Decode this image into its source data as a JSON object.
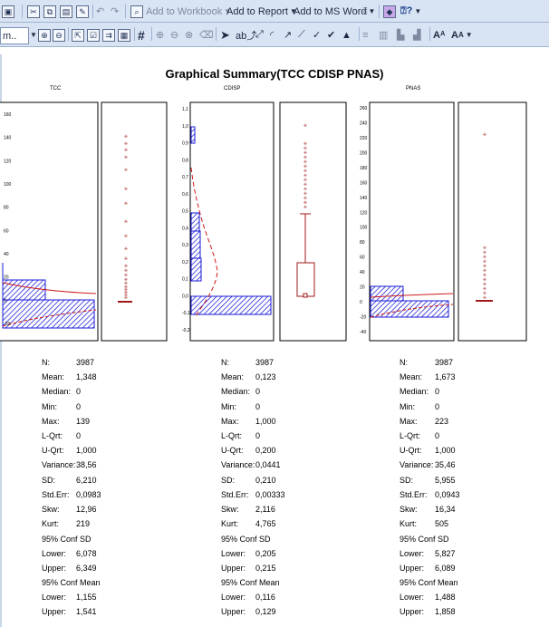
{
  "toolbar1": {
    "add_to_workbook": "Add to Workbook",
    "add_to_report": "Add to Report",
    "add_to_ms_word": "Add to MS Word"
  },
  "toolbar2": {
    "truncated_dropdown": "m..",
    "text_tool": "A"
  },
  "window_title": "Graphical Summary(TCC CDISP PNAS)",
  "panels": [
    {
      "name": "TCC",
      "y_ticks": [
        "160",
        "140",
        "120",
        "100",
        "80",
        "60",
        "40",
        "20",
        "0",
        "-20"
      ],
      "stats": [
        [
          "N:",
          "3987"
        ],
        [
          "Mean:",
          "1,348"
        ],
        [
          "Median:",
          "0"
        ],
        [
          "Min:",
          "0"
        ],
        [
          "Max:",
          "139"
        ],
        [
          "L-Qrt:",
          "0"
        ],
        [
          "U-Qrt:",
          "1,000"
        ],
        [
          "Variance:",
          "38,56"
        ],
        [
          "SD:",
          "6,210"
        ],
        [
          "Std.Err:",
          "0,0983"
        ],
        [
          "Skw:",
          "12,96"
        ],
        [
          "Kurt:",
          "219"
        ]
      ],
      "ci_sd": {
        "title": "95% Conf SD",
        "lower": [
          "Lower:",
          "6,078"
        ],
        "upper": [
          "Upper:",
          "6,349"
        ]
      },
      "ci_mean": {
        "title": "95% Conf Mean",
        "lower": [
          "Lower:",
          "1,155"
        ],
        "upper": [
          "Upper:",
          "1,541"
        ]
      }
    },
    {
      "name": "CDISP",
      "y_ticks": [
        "1,1",
        "1,0",
        "0,9",
        "0,8",
        "0,7",
        "0,6",
        "0,5",
        "0,4",
        "0,3",
        "0,2",
        "0,1",
        "0,0",
        "-0,1",
        "-0,2"
      ],
      "stats": [
        [
          "N:",
          "3987"
        ],
        [
          "Mean:",
          "0,123"
        ],
        [
          "Median:",
          "0"
        ],
        [
          "Min:",
          "0"
        ],
        [
          "Max:",
          "1,000"
        ],
        [
          "L-Qrt:",
          "0"
        ],
        [
          "U-Qrt:",
          "0,200"
        ],
        [
          "Variance:",
          "0,0441"
        ],
        [
          "SD:",
          "0,210"
        ],
        [
          "Std.Err:",
          "0,00333"
        ],
        [
          "Skw:",
          "2,116"
        ],
        [
          "Kurt:",
          "4,765"
        ]
      ],
      "ci_sd": {
        "title": "95% Conf SD",
        "lower": [
          "Lower:",
          "0,205"
        ],
        "upper": [
          "Upper:",
          "0,215"
        ]
      },
      "ci_mean": {
        "title": "95% Conf Mean",
        "lower": [
          "Lower:",
          "0,116"
        ],
        "upper": [
          "Upper:",
          "0,129"
        ]
      }
    },
    {
      "name": "PNAS",
      "y_ticks": [
        "260",
        "240",
        "220",
        "200",
        "180",
        "160",
        "140",
        "120",
        "100",
        "80",
        "60",
        "40",
        "20",
        "0",
        "-20",
        "-40"
      ],
      "stats": [
        [
          "N:",
          "3987"
        ],
        [
          "Mean:",
          "1,673"
        ],
        [
          "Median:",
          "0"
        ],
        [
          "Min:",
          "0"
        ],
        [
          "Max:",
          "223"
        ],
        [
          "L-Qrt:",
          "0"
        ],
        [
          "U-Qrt:",
          "1,000"
        ],
        [
          "Variance:",
          "35,46"
        ],
        [
          "SD:",
          "5,955"
        ],
        [
          "Std.Err:",
          "0,0943"
        ],
        [
          "Skw:",
          "16,34"
        ],
        [
          "Kurt:",
          "505"
        ]
      ],
      "ci_sd": {
        "title": "95% Conf SD",
        "lower": [
          "Lower:",
          "5,827"
        ],
        "upper": [
          "Upper:",
          "6,089"
        ]
      },
      "ci_mean": {
        "title": "95% Conf Mean",
        "lower": [
          "Lower:",
          "1,488"
        ],
        "upper": [
          "Upper:",
          "1,858"
        ]
      }
    }
  ],
  "colors": {
    "toolbar_bg": "#d8e4f4",
    "histogram_stroke": "#1a1ad8",
    "histogram_hatch": "#1a1ad8",
    "normal_curve": "#cc1a1a",
    "boxplot": "#a01a1a"
  }
}
